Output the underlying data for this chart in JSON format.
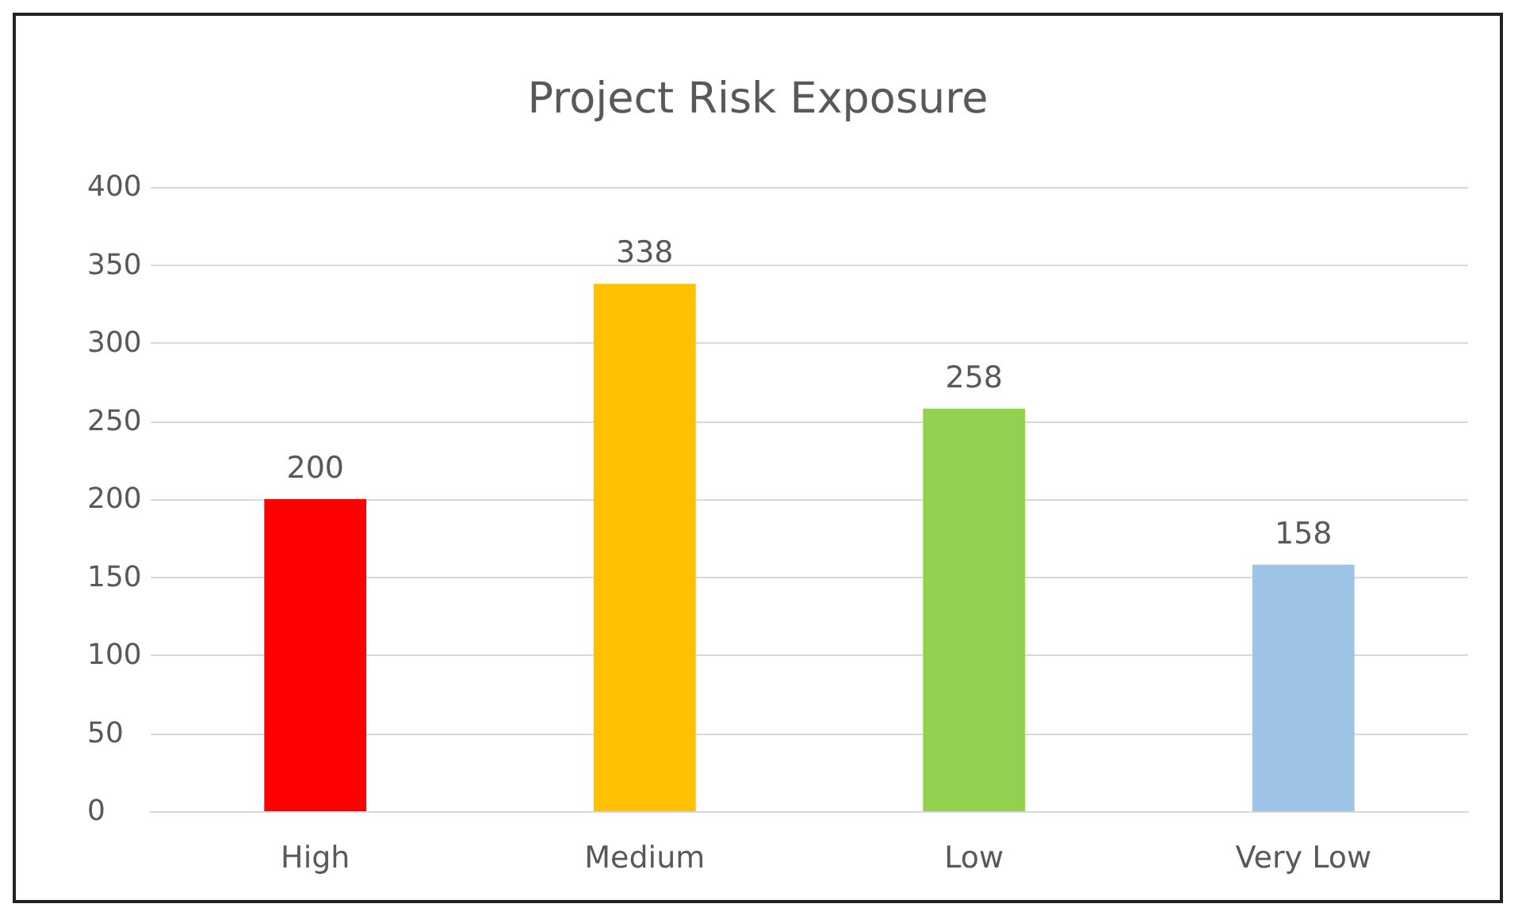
{
  "chart_data": {
    "type": "bar",
    "title": "Project Risk Exposure",
    "categories": [
      "High",
      "Medium",
      "Low",
      "Very Low"
    ],
    "values": [
      200,
      338,
      258,
      158
    ],
    "colors": [
      "#ff0000",
      "#ffc000",
      "#92d050",
      "#9dc3e6"
    ],
    "ylim": [
      0,
      400
    ],
    "yticks": [
      0,
      50,
      100,
      150,
      200,
      250,
      300,
      350,
      400
    ],
    "grid": "y",
    "data_labels": true
  }
}
